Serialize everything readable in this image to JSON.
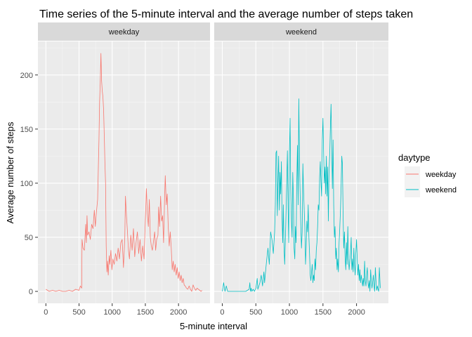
{
  "chart_data": {
    "type": "line",
    "title": "Time series of the 5-minute interval and the average number of steps taken",
    "xlabel": "5-minute interval",
    "ylabel": "Average number of steps",
    "xlim": [
      -120,
      2475
    ],
    "ylim": [
      -11,
      231
    ],
    "x_ticks": [
      0,
      500,
      1000,
      1500,
      2000
    ],
    "y_ticks": [
      0,
      50,
      100,
      150,
      200
    ],
    "grid": true,
    "legend": {
      "title": "daytype",
      "position": "right"
    },
    "panels": [
      "weekday",
      "weekend"
    ],
    "series": [
      {
        "name": "weekday",
        "panel": "weekday",
        "color": "#F8766D",
        "points": [
          [
            0,
            2
          ],
          [
            50,
            0
          ],
          [
            100,
            1
          ],
          [
            150,
            0
          ],
          [
            200,
            1
          ],
          [
            250,
            0
          ],
          [
            300,
            0
          ],
          [
            350,
            1
          ],
          [
            400,
            0
          ],
          [
            450,
            2
          ],
          [
            500,
            1
          ],
          [
            520,
            5
          ],
          [
            540,
            3
          ],
          [
            545,
            48
          ],
          [
            560,
            40
          ],
          [
            580,
            38
          ],
          [
            600,
            62
          ],
          [
            610,
            45
          ],
          [
            620,
            70
          ],
          [
            630,
            52
          ],
          [
            650,
            55
          ],
          [
            670,
            48
          ],
          [
            690,
            62
          ],
          [
            710,
            58
          ],
          [
            730,
            75
          ],
          [
            745,
            60
          ],
          [
            760,
            72
          ],
          [
            780,
            85
          ],
          [
            800,
            140
          ],
          [
            810,
            175
          ],
          [
            820,
            192
          ],
          [
            830,
            220
          ],
          [
            840,
            195
          ],
          [
            850,
            185
          ],
          [
            860,
            180
          ],
          [
            870,
            168
          ],
          [
            880,
            145
          ],
          [
            890,
            118
          ],
          [
            900,
            100
          ],
          [
            910,
            42
          ],
          [
            920,
            18
          ],
          [
            930,
            28
          ],
          [
            940,
            15
          ],
          [
            955,
            33
          ],
          [
            965,
            25
          ],
          [
            980,
            38
          ],
          [
            995,
            20
          ],
          [
            1010,
            30
          ],
          [
            1030,
            25
          ],
          [
            1050,
            35
          ],
          [
            1070,
            28
          ],
          [
            1090,
            40
          ],
          [
            1110,
            30
          ],
          [
            1130,
            45
          ],
          [
            1150,
            48
          ],
          [
            1170,
            22
          ],
          [
            1190,
            50
          ],
          [
            1200,
            88
          ],
          [
            1215,
            70
          ],
          [
            1230,
            55
          ],
          [
            1245,
            38
          ],
          [
            1260,
            30
          ],
          [
            1280,
            52
          ],
          [
            1300,
            38
          ],
          [
            1320,
            58
          ],
          [
            1340,
            32
          ],
          [
            1360,
            45
          ],
          [
            1380,
            55
          ],
          [
            1400,
            35
          ],
          [
            1420,
            48
          ],
          [
            1440,
            28
          ],
          [
            1460,
            42
          ],
          [
            1480,
            30
          ],
          [
            1500,
            65
          ],
          [
            1515,
            95
          ],
          [
            1530,
            72
          ],
          [
            1545,
            60
          ],
          [
            1560,
            85
          ],
          [
            1575,
            50
          ],
          [
            1590,
            42
          ],
          [
            1605,
            38
          ],
          [
            1620,
            45
          ],
          [
            1640,
            55
          ],
          [
            1655,
            38
          ],
          [
            1670,
            48
          ],
          [
            1690,
            52
          ],
          [
            1700,
            78
          ],
          [
            1715,
            60
          ],
          [
            1730,
            88
          ],
          [
            1745,
            65
          ],
          [
            1760,
            70
          ],
          [
            1775,
            45
          ],
          [
            1790,
            85
          ],
          [
            1800,
            107
          ],
          [
            1815,
            80
          ],
          [
            1830,
            90
          ],
          [
            1845,
            60
          ],
          [
            1860,
            42
          ],
          [
            1875,
            55
          ],
          [
            1890,
            40
          ],
          [
            1905,
            20
          ],
          [
            1920,
            28
          ],
          [
            1935,
            18
          ],
          [
            1950,
            25
          ],
          [
            1965,
            15
          ],
          [
            1980,
            22
          ],
          [
            1995,
            12
          ],
          [
            2010,
            18
          ],
          [
            2025,
            10
          ],
          [
            2040,
            15
          ],
          [
            2055,
            8
          ],
          [
            2070,
            12
          ],
          [
            2085,
            6
          ],
          [
            2100,
            5
          ],
          [
            2120,
            3
          ],
          [
            2140,
            2
          ],
          [
            2160,
            5
          ],
          [
            2180,
            2
          ],
          [
            2200,
            0
          ],
          [
            2220,
            6
          ],
          [
            2240,
            3
          ],
          [
            2260,
            1
          ],
          [
            2280,
            3
          ],
          [
            2300,
            2
          ],
          [
            2320,
            1
          ],
          [
            2340,
            0
          ],
          [
            2355,
            1
          ]
        ]
      },
      {
        "name": "weekend",
        "panel": "weekend",
        "color": "#00BFC4",
        "points": [
          [
            0,
            0
          ],
          [
            20,
            8
          ],
          [
            40,
            0
          ],
          [
            60,
            5
          ],
          [
            80,
            0
          ],
          [
            100,
            0
          ],
          [
            150,
            0
          ],
          [
            200,
            0
          ],
          [
            250,
            0
          ],
          [
            300,
            0
          ],
          [
            350,
            0
          ],
          [
            400,
            2
          ],
          [
            410,
            8
          ],
          [
            420,
            0
          ],
          [
            430,
            3
          ],
          [
            440,
            0
          ],
          [
            460,
            2
          ],
          [
            480,
            0
          ],
          [
            500,
            3
          ],
          [
            520,
            12
          ],
          [
            530,
            2
          ],
          [
            545,
            5
          ],
          [
            560,
            8
          ],
          [
            580,
            15
          ],
          [
            600,
            5
          ],
          [
            620,
            18
          ],
          [
            630,
            8
          ],
          [
            640,
            15
          ],
          [
            660,
            28
          ],
          [
            680,
            40
          ],
          [
            700,
            25
          ],
          [
            720,
            55
          ],
          [
            740,
            48
          ],
          [
            760,
            35
          ],
          [
            780,
            55
          ],
          [
            790,
            80
          ],
          [
            800,
            128
          ],
          [
            810,
            130
          ],
          [
            815,
            95
          ],
          [
            820,
            70
          ],
          [
            830,
            100
          ],
          [
            840,
            125
          ],
          [
            850,
            75
          ],
          [
            860,
            110
          ],
          [
            870,
            90
          ],
          [
            880,
            120
          ],
          [
            890,
            70
          ],
          [
            900,
            45
          ],
          [
            910,
            80
          ],
          [
            920,
            40
          ],
          [
            930,
            25
          ],
          [
            945,
            60
          ],
          [
            960,
            100
          ],
          [
            970,
            130
          ],
          [
            980,
            80
          ],
          [
            990,
            45
          ],
          [
            1000,
            125
          ],
          [
            1010,
            160
          ],
          [
            1020,
            95
          ],
          [
            1030,
            65
          ],
          [
            1040,
            50
          ],
          [
            1050,
            110
          ],
          [
            1060,
            85
          ],
          [
            1070,
            40
          ],
          [
            1080,
            30
          ],
          [
            1090,
            60
          ],
          [
            1100,
            45
          ],
          [
            1110,
            100
          ],
          [
            1120,
            135
          ],
          [
            1130,
            80
          ],
          [
            1140,
            178
          ],
          [
            1150,
            120
          ],
          [
            1160,
            90
          ],
          [
            1170,
            60
          ],
          [
            1180,
            40
          ],
          [
            1190,
            55
          ],
          [
            1200,
            118
          ],
          [
            1210,
            95
          ],
          [
            1220,
            75
          ],
          [
            1230,
            60
          ],
          [
            1240,
            25
          ],
          [
            1250,
            40
          ],
          [
            1260,
            65
          ],
          [
            1270,
            55
          ],
          [
            1280,
            80
          ],
          [
            1290,
            50
          ],
          [
            1300,
            35
          ],
          [
            1310,
            15
          ],
          [
            1320,
            10
          ],
          [
            1330,
            18
          ],
          [
            1340,
            25
          ],
          [
            1350,
            8
          ],
          [
            1360,
            15
          ],
          [
            1370,
            10
          ],
          [
            1380,
            30
          ],
          [
            1390,
            20
          ],
          [
            1400,
            38
          ],
          [
            1410,
            45
          ],
          [
            1420,
            60
          ],
          [
            1430,
            80
          ],
          [
            1440,
            75
          ],
          [
            1450,
            105
          ],
          [
            1460,
            120
          ],
          [
            1470,
            100
          ],
          [
            1480,
            88
          ],
          [
            1490,
            140
          ],
          [
            1500,
            160
          ],
          [
            1510,
            125
          ],
          [
            1520,
            100
          ],
          [
            1530,
            115
          ],
          [
            1540,
            90
          ],
          [
            1550,
            125
          ],
          [
            1560,
            88
          ],
          [
            1570,
            115
          ],
          [
            1580,
            65
          ],
          [
            1590,
            110
          ],
          [
            1600,
            125
          ],
          [
            1610,
            150
          ],
          [
            1620,
            173
          ],
          [
            1630,
            135
          ],
          [
            1640,
            95
          ],
          [
            1650,
            140
          ],
          [
            1660,
            80
          ],
          [
            1670,
            50
          ],
          [
            1680,
            60
          ],
          [
            1690,
            30
          ],
          [
            1700,
            40
          ],
          [
            1710,
            20
          ],
          [
            1720,
            30
          ],
          [
            1730,
            18
          ],
          [
            1740,
            45
          ],
          [
            1750,
            58
          ],
          [
            1760,
            75
          ],
          [
            1770,
            95
          ],
          [
            1780,
            125
          ],
          [
            1790,
            118
          ],
          [
            1800,
            70
          ],
          [
            1810,
            40
          ],
          [
            1820,
            55
          ],
          [
            1830,
            30
          ],
          [
            1840,
            20
          ],
          [
            1850,
            45
          ],
          [
            1860,
            25
          ],
          [
            1870,
            60
          ],
          [
            1880,
            30
          ],
          [
            1890,
            20
          ],
          [
            1900,
            28
          ],
          [
            1910,
            35
          ],
          [
            1920,
            50
          ],
          [
            1930,
            20
          ],
          [
            1940,
            30
          ],
          [
            1950,
            18
          ],
          [
            1960,
            40
          ],
          [
            1970,
            25
          ],
          [
            1980,
            15
          ],
          [
            1990,
            35
          ],
          [
            2000,
            48
          ],
          [
            2010,
            30
          ],
          [
            2020,
            15
          ],
          [
            2030,
            25
          ],
          [
            2040,
            10
          ],
          [
            2050,
            20
          ],
          [
            2060,
            8
          ],
          [
            2070,
            15
          ],
          [
            2080,
            10
          ],
          [
            2090,
            5
          ],
          [
            2100,
            12
          ],
          [
            2110,
            5
          ],
          [
            2120,
            28
          ],
          [
            2130,
            10
          ],
          [
            2140,
            5
          ],
          [
            2150,
            15
          ],
          [
            2160,
            22
          ],
          [
            2170,
            8
          ],
          [
            2180,
            3
          ],
          [
            2190,
            10
          ],
          [
            2200,
            0
          ],
          [
            2210,
            20
          ],
          [
            2220,
            10
          ],
          [
            2230,
            3
          ],
          [
            2240,
            8
          ],
          [
            2250,
            15
          ],
          [
            2260,
            5
          ],
          [
            2270,
            0
          ],
          [
            2280,
            22
          ],
          [
            2290,
            10
          ],
          [
            2300,
            1
          ],
          [
            2310,
            5
          ],
          [
            2320,
            2
          ],
          [
            2330,
            0
          ],
          [
            2340,
            22
          ],
          [
            2350,
            8
          ],
          [
            2355,
            3
          ]
        ]
      }
    ]
  }
}
